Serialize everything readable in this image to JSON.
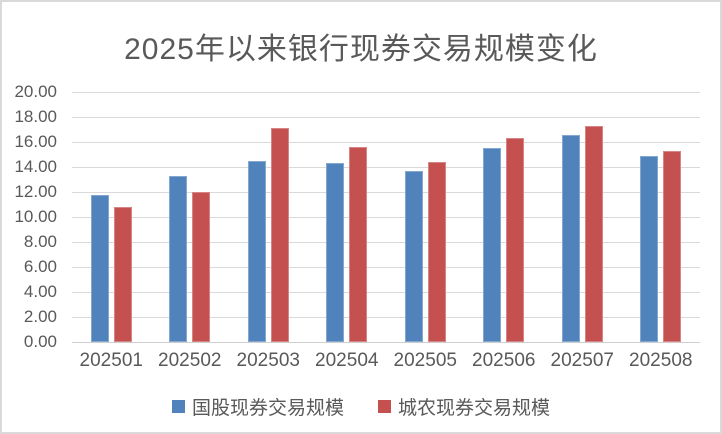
{
  "chart_data": {
    "type": "bar",
    "title": "2025年以来银行现券交易规模变化",
    "categories": [
      "202501",
      "202502",
      "202503",
      "202504",
      "202505",
      "202506",
      "202507",
      "202508"
    ],
    "series": [
      {
        "name": "国股现券交易规模",
        "color": "#5082BC",
        "values": [
          11.8,
          13.3,
          14.5,
          14.3,
          13.7,
          15.5,
          16.6,
          14.9
        ]
      },
      {
        "name": "城农现券交易规模",
        "color": "#C4514F",
        "values": [
          10.8,
          12.0,
          17.1,
          15.6,
          14.4,
          16.3,
          17.3,
          15.3
        ]
      }
    ],
    "xlabel": "",
    "ylabel": "",
    "ylim": [
      0,
      20
    ],
    "ytick_step": 2,
    "ytick_labels_top_to_bottom": [
      "20.00",
      "18.00",
      "16.00",
      "14.00",
      "12.00",
      "10.00",
      "8.00",
      "6.00",
      "4.00",
      "2.00",
      "0.00"
    ],
    "grid": true,
    "legend_position": "bottom"
  },
  "colors": {
    "title_text": "#595959",
    "axis_text": "#595959",
    "gridline": "#D9D9D9",
    "frame_border": "#D9D9D9",
    "background": "#FFFFFF",
    "series1": "#5082BC",
    "series2": "#C4514F"
  }
}
